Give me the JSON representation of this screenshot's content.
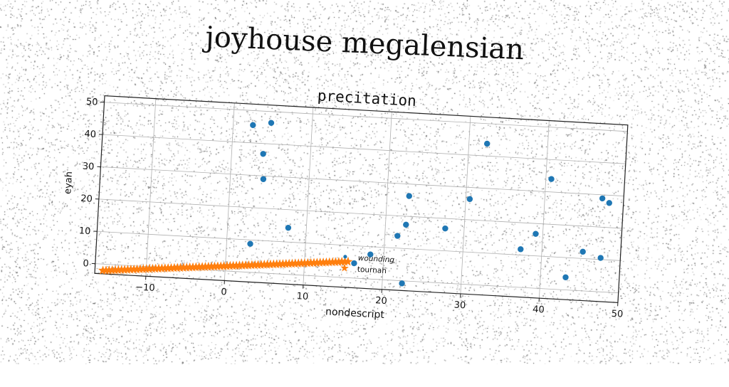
{
  "figure": {
    "suptitle": "joyhouse megalensian"
  },
  "chart_data": {
    "type": "scatter",
    "title": "precitation",
    "xlabel": "nondescript",
    "ylabel": "eyah",
    "xlim": [
      -16.5,
      50
    ],
    "ylim": [
      -3,
      52
    ],
    "xticks": [
      -10,
      0,
      10,
      20,
      30,
      40,
      50
    ],
    "yticks": [
      0,
      10,
      20,
      30,
      40,
      50
    ],
    "grid": true,
    "legend_position": "lower-center",
    "series": [
      {
        "name": "wounding",
        "marker": "circle",
        "color": "#1f77b4",
        "points": [
          [
            2.5,
            45.5
          ],
          [
            4.8,
            46.5
          ],
          [
            4.0,
            36.8
          ],
          [
            4.2,
            29.0
          ],
          [
            3.0,
            8.8
          ],
          [
            7.7,
            14.4
          ],
          [
            16.3,
            4.6
          ],
          [
            18.3,
            7.6
          ],
          [
            21.6,
            13.8
          ],
          [
            22.6,
            17.4
          ],
          [
            22.8,
            26.3
          ],
          [
            22.5,
            -0.8
          ],
          [
            27.6,
            16.9
          ],
          [
            30.5,
            26.4
          ],
          [
            32.3,
            43.8
          ],
          [
            37.3,
            11.8
          ],
          [
            39.1,
            16.8
          ],
          [
            40.7,
            34.0
          ],
          [
            43.2,
            3.9
          ],
          [
            45.2,
            12.1
          ],
          [
            47.3,
            28.9
          ],
          [
            48.2,
            27.6
          ],
          [
            47.5,
            10.5
          ]
        ]
      },
      {
        "name": "tournah",
        "marker": "star",
        "color": "#ff7f0e",
        "x_range": [
          -15.5,
          15.5
        ],
        "y_range": [
          -2,
          5
        ],
        "count": 80
      }
    ]
  }
}
